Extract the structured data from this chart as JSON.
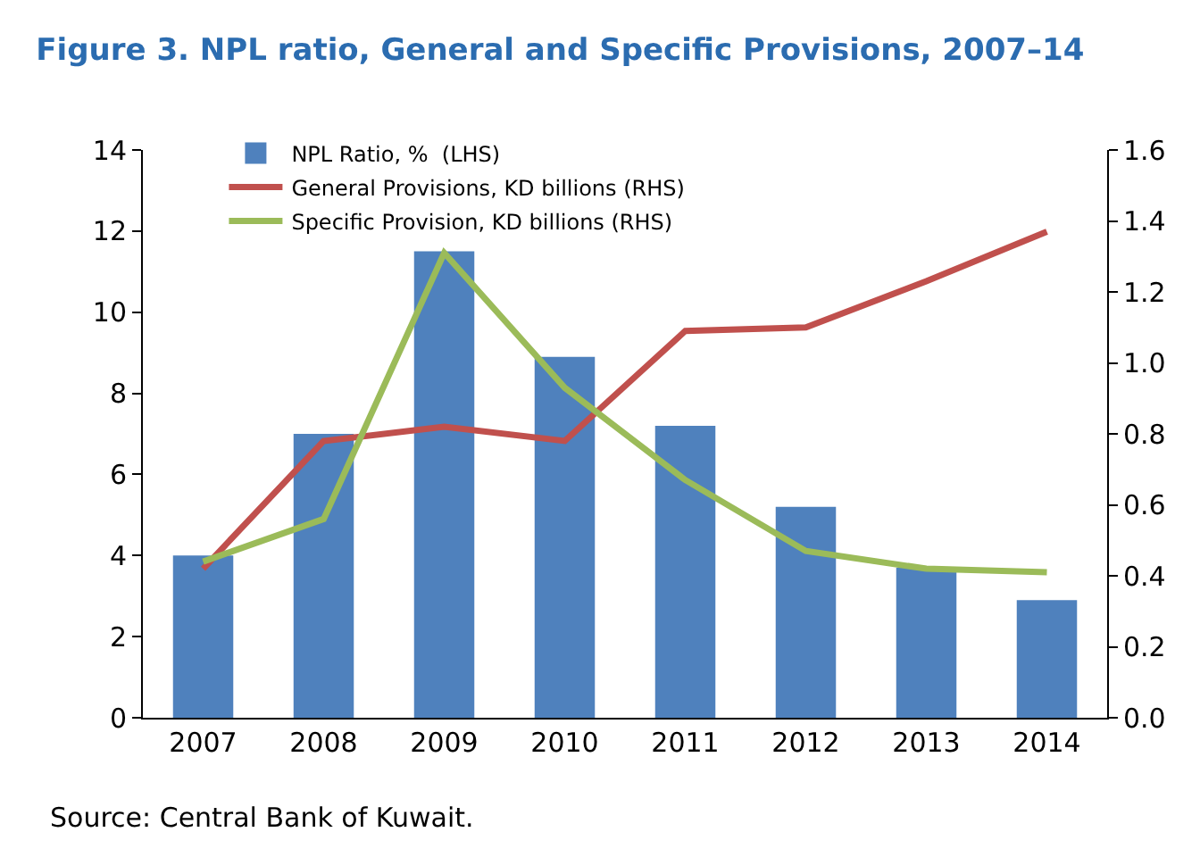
{
  "chart_data": {
    "type": "bar",
    "title": "Figure 3. NPL ratio, General and Specific Provisions, 2007–14",
    "categories": [
      "2007",
      "2008",
      "2009",
      "2010",
      "2011",
      "2012",
      "2013",
      "2014"
    ],
    "series": [
      {
        "name": "NPL Ratio, %  (LHS)",
        "color": "#4f81bd",
        "values": [
          4.0,
          7.0,
          11.5,
          8.9,
          7.2,
          5.2,
          3.7,
          2.9
        ]
      },
      {
        "name": "General Provisions, KD billions (RHS)",
        "type": "line",
        "axis": "y2",
        "color": "#c0504d",
        "values": [
          0.42,
          0.78,
          0.82,
          0.78,
          1.09,
          1.1,
          1.23,
          1.37
        ]
      },
      {
        "name": "Specific Provision, KD billions (RHS)",
        "type": "line",
        "axis": "y2",
        "color": "#9bbb59",
        "values": [
          0.44,
          0.56,
          1.31,
          0.93,
          0.67,
          0.47,
          0.42,
          0.41
        ]
      }
    ],
    "ylim": [
      0,
      14
    ],
    "yticks": [
      0,
      2,
      4,
      6,
      8,
      10,
      12,
      14
    ],
    "y2lim": [
      0,
      1.6
    ],
    "y2ticks": [
      {
        "value": 0,
        "label": "0.0"
      },
      {
        "value": 0.2,
        "label": "0.2"
      },
      {
        "value": 0.4,
        "label": "0.4"
      },
      {
        "value": 0.6,
        "label": "0.6"
      },
      {
        "value": 0.8,
        "label": "0.8"
      },
      {
        "value": 1,
        "label": "1.0"
      },
      {
        "value": 1.2,
        "label": "1.2"
      },
      {
        "value": 1.4,
        "label": "1.4"
      },
      {
        "value": 1.6,
        "label": "1.6"
      }
    ],
    "grid": false,
    "legend": "top left",
    "marker": "none",
    "line_style": "solid",
    "annotations": [
      "Source: Central Bank of Kuwait."
    ]
  }
}
